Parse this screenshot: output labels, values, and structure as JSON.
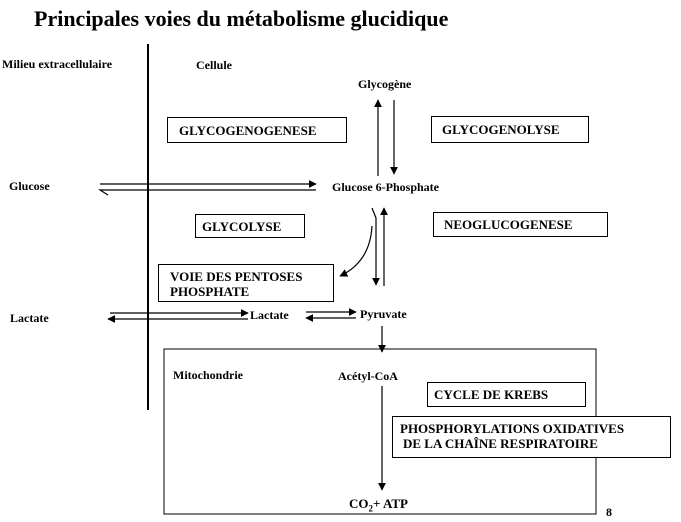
{
  "title": "Principales voies du métabolisme glucidique",
  "page_number": "8",
  "regions": {
    "extracellular": "Milieu extracellulaire",
    "cell": "Cellule",
    "mitochondria": "Mitochondrie"
  },
  "metabolites": {
    "glycogen": "Glycogène",
    "glucose_ext": "Glucose",
    "g6p": "Glucose 6-Phosphate",
    "lactate_ext": "Lactate",
    "lactate_int": "Lactate",
    "pyruvate": "Pyruvate",
    "acetyl_coa": "Acétyl-CoA",
    "co2": "CO",
    "co2_sub": "2",
    "atp": "+ ATP"
  },
  "pathways": {
    "glycogenogenese": "GLYCOGENOGENESE",
    "glycogenolyse": "GLYCOGENOLYSE",
    "glycolyse": "GLYCOLYSE",
    "neoglucogenese": "NEOGLUCOGENESE",
    "pentoses_line1": "VOIE DES PENTOSES",
    "pentoses_line2": "PHOSPHATE",
    "krebs": "CYCLE DE KREBS",
    "phospho_line1": "PHOSPHORYLATIONS OXIDATIVES",
    "phospho_line2": "DE LA CHAÎNE RESPIRATOIRE"
  }
}
